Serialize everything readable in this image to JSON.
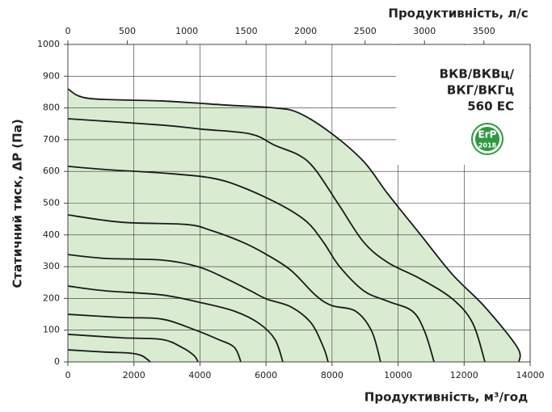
{
  "chart_data": {
    "type": "line",
    "xlabel": "Продуктивність, м³/год",
    "x2label": "Продуктивність, л/с",
    "ylabel": "Статичний тиск, ΔР (Па)",
    "xlim": [
      0,
      14000
    ],
    "xticks": [
      0,
      2000,
      4000,
      6000,
      8000,
      10000,
      12000,
      14000
    ],
    "x2lim": [
      0,
      3889
    ],
    "x2ticks": [
      0,
      500,
      1000,
      1500,
      2000,
      2500,
      3000,
      3500
    ],
    "ylim": [
      0,
      1000
    ],
    "yticks": [
      0,
      100,
      200,
      300,
      400,
      500,
      600,
      700,
      800,
      900,
      1000
    ],
    "grid": true,
    "annotations": [
      "ВКВ/ВКВц/",
      "ВКГ/ВКГц",
      "560 ЕС"
    ],
    "badge": {
      "text": "ErP",
      "year": "2018",
      "color": "#2e9a3e"
    },
    "series": [
      {
        "color": "#1a1a1a",
        "x": [
          0,
          1130,
          1860,
          2230,
          2500
        ],
        "values": [
          38,
          31,
          28,
          20,
          0
        ]
      },
      {
        "color": "#1a1a1a",
        "x": [
          0,
          1620,
          2840,
          3450,
          3820,
          3940
        ],
        "values": [
          87,
          76,
          71,
          46,
          20,
          0
        ]
      },
      {
        "color": "#1a1a1a",
        "x": [
          0,
          1620,
          2840,
          3820,
          4550,
          5040,
          5240
        ],
        "values": [
          150,
          140,
          135,
          102,
          71,
          46,
          0
        ]
      },
      {
        "color": "#1a1a1a",
        "x": [
          0,
          1130,
          2840,
          4060,
          5040,
          5780,
          6270,
          6510
        ],
        "values": [
          239,
          224,
          211,
          186,
          160,
          122,
          71,
          0
        ]
      },
      {
        "color": "#1a1a1a",
        "x": [
          0,
          1130,
          2840,
          3940,
          4800,
          5530,
          6020,
          6760,
          7370,
          7740,
          7880
        ],
        "values": [
          338,
          326,
          321,
          300,
          262,
          224,
          198,
          173,
          122,
          46,
          0
        ]
      },
      {
        "color": "#1a1a1a",
        "x": [
          0,
          1620,
          3570,
          4310,
          5290,
          6020,
          6760,
          7490,
          7980,
          8710,
          9200,
          9470
        ],
        "values": [
          463,
          440,
          433,
          415,
          377,
          338,
          288,
          211,
          178,
          160,
          97,
          0
        ]
      },
      {
        "color": "#1a1a1a",
        "x": [
          0,
          1130,
          2840,
          4310,
          5290,
          6510,
          7250,
          7740,
          8230,
          8960,
          9690,
          10430,
          10800,
          11090
        ],
        "values": [
          616,
          606,
          595,
          580,
          550,
          491,
          440,
          377,
          300,
          224,
          191,
          160,
          97,
          0
        ]
      },
      {
        "color": "#1a1a1a",
        "x": [
          0,
          2840,
          4060,
          5530,
          6270,
          7000,
          7490,
          8230,
          8960,
          9690,
          10670,
          11650,
          12260,
          12630
        ],
        "values": [
          766,
          746,
          733,
          718,
          682,
          651,
          606,
          491,
          377,
          313,
          262,
          198,
          122,
          0
        ]
      },
      {
        "color": "#1a1a1a",
        "fill": "#d9ecd1",
        "x": [
          0,
          636,
          2840,
          4800,
          6270,
          7000,
          7980,
          8960,
          9690,
          10670,
          11650,
          12630,
          13610,
          13660
        ],
        "values": [
          860,
          830,
          822,
          809,
          800,
          784,
          720,
          631,
          529,
          402,
          275,
          173,
          46,
          0
        ]
      }
    ]
  }
}
